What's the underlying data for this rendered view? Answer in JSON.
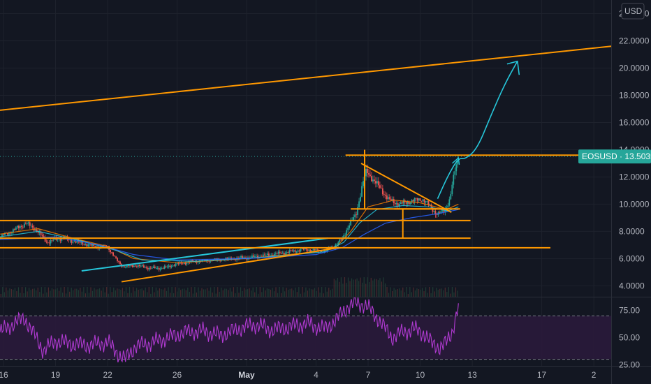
{
  "chart_data": [
    {
      "type": "candlestick",
      "symbol": "EOSUSD",
      "currency_label": "USD",
      "last_price_label": "EOSUSD · 13.5035",
      "last_price": 13.5035,
      "y_axis": {
        "ylim": [
          3.2,
          25
        ],
        "ticks": [
          4,
          6,
          8,
          10,
          12,
          14,
          16,
          18,
          20,
          22,
          24
        ],
        "tick_labels": [
          "4.0000",
          "6.0000",
          "8.0000",
          "10.0000",
          "12.0000",
          "14.0000",
          "16.0000",
          "18.0000",
          "20.0000",
          "22.0000",
          "24.0000"
        ]
      },
      "x_axis": {
        "xlim": [
          15.8,
          51
        ],
        "ticks": [
          16,
          19,
          22,
          26,
          30,
          34,
          37,
          40,
          43,
          47,
          50
        ],
        "tick_labels": [
          "16",
          "19",
          "22",
          "26",
          "May",
          "4",
          "7",
          "10",
          "13",
          "17",
          "2"
        ],
        "bold": [
          "May"
        ]
      },
      "price_path": [
        [
          15.8,
          7.6
        ],
        [
          16.6,
          8.1
        ],
        [
          17.3,
          8.6
        ],
        [
          17.9,
          8.1
        ],
        [
          18.5,
          7.2
        ],
        [
          19.3,
          7.5
        ],
        [
          20.3,
          7.2
        ],
        [
          21.2,
          6.9
        ],
        [
          22.0,
          6.9
        ],
        [
          22.5,
          5.9
        ],
        [
          22.9,
          5.4
        ],
        [
          23.6,
          5.5
        ],
        [
          24.4,
          5.3
        ],
        [
          25.2,
          5.3
        ],
        [
          26.0,
          5.6
        ],
        [
          27.0,
          5.8
        ],
        [
          28.0,
          5.9
        ],
        [
          29.2,
          6.0
        ],
        [
          30.3,
          6.1
        ],
        [
          31.5,
          6.3
        ],
        [
          32.5,
          6.5
        ],
        [
          33.4,
          6.7
        ],
        [
          34.0,
          6.6
        ],
        [
          34.5,
          6.6
        ],
        [
          35.0,
          6.9
        ],
        [
          35.5,
          7.4
        ],
        [
          35.9,
          8.5
        ],
        [
          36.3,
          9.2
        ],
        [
          36.7,
          11.6
        ],
        [
          36.9,
          12.4
        ],
        [
          37.3,
          11.8
        ],
        [
          37.8,
          11.0
        ],
        [
          38.2,
          10.3
        ],
        [
          38.8,
          10.0
        ],
        [
          39.4,
          10.2
        ],
        [
          40.1,
          10.4
        ],
        [
          40.6,
          9.8
        ],
        [
          41.0,
          9.2
        ],
        [
          41.4,
          9.6
        ],
        [
          41.7,
          10.3
        ],
        [
          42.0,
          12.5
        ],
        [
          42.2,
          13.5
        ]
      ],
      "moving_averages": [
        {
          "color": "#f57c00",
          "points": [
            [
              15.8,
              7.8
            ],
            [
              18.0,
              8.2
            ],
            [
              20.0,
              7.5
            ],
            [
              22.0,
              6.9
            ],
            [
              23.5,
              6.0
            ],
            [
              26.0,
              5.7
            ],
            [
              30.0,
              6.0
            ],
            [
              34.0,
              6.5
            ],
            [
              35.2,
              6.9
            ],
            [
              36.0,
              8.0
            ],
            [
              37.0,
              9.8
            ],
            [
              38.5,
              10.3
            ],
            [
              40.0,
              10.1
            ],
            [
              41.5,
              9.6
            ],
            [
              42.2,
              10.0
            ]
          ]
        },
        {
          "color": "#26c6da",
          "points": [
            [
              15.8,
              7.6
            ],
            [
              18.0,
              8.0
            ],
            [
              20.5,
              7.3
            ],
            [
              22.5,
              6.6
            ],
            [
              24.0,
              5.9
            ],
            [
              27.0,
              5.8
            ],
            [
              31.0,
              6.1
            ],
            [
              34.5,
              6.5
            ],
            [
              35.6,
              7.2
            ],
            [
              36.5,
              8.6
            ],
            [
              37.5,
              9.6
            ],
            [
              39.0,
              9.9
            ],
            [
              40.5,
              9.8
            ],
            [
              41.6,
              9.5
            ],
            [
              42.2,
              9.8
            ]
          ]
        },
        {
          "color": "#2962ff",
          "points": [
            [
              15.8,
              7.4
            ],
            [
              19.0,
              7.6
            ],
            [
              21.5,
              7.0
            ],
            [
              23.5,
              6.3
            ],
            [
              26.0,
              5.9
            ],
            [
              30.0,
              6.0
            ],
            [
              34.0,
              6.3
            ],
            [
              35.5,
              6.8
            ],
            [
              36.8,
              7.8
            ],
            [
              38.0,
              8.6
            ],
            [
              39.5,
              9.0
            ],
            [
              41.0,
              9.3
            ],
            [
              42.2,
              9.6
            ]
          ]
        }
      ],
      "rsi_panel": {
        "ylim": [
          24,
          87
        ],
        "ticks": [
          25,
          50,
          75
        ],
        "tick_labels": [
          "25.00",
          "50.00",
          "75.00"
        ],
        "band": [
          30,
          70
        ],
        "line_color": "#b03ad1",
        "rsi_path": [
          [
            15.8,
            55
          ],
          [
            16.5,
            62
          ],
          [
            17.2,
            68
          ],
          [
            17.8,
            52
          ],
          [
            18.3,
            38
          ],
          [
            19.0,
            47
          ],
          [
            20.0,
            44
          ],
          [
            21.0,
            43
          ],
          [
            22.0,
            46
          ],
          [
            22.6,
            35
          ],
          [
            23.0,
            30
          ],
          [
            23.6,
            42
          ],
          [
            24.5,
            45
          ],
          [
            25.5,
            50
          ],
          [
            26.5,
            55
          ],
          [
            27.5,
            56
          ],
          [
            28.5,
            52
          ],
          [
            29.5,
            58
          ],
          [
            30.5,
            62
          ],
          [
            31.5,
            57
          ],
          [
            32.5,
            60
          ],
          [
            33.5,
            63
          ],
          [
            34.5,
            58
          ],
          [
            35.2,
            67
          ],
          [
            35.8,
            78
          ],
          [
            36.3,
            82
          ],
          [
            36.8,
            80
          ],
          [
            37.3,
            73
          ],
          [
            37.8,
            62
          ],
          [
            38.4,
            50
          ],
          [
            39.0,
            55
          ],
          [
            39.6,
            58
          ],
          [
            40.2,
            54
          ],
          [
            40.7,
            44
          ],
          [
            41.1,
            41
          ],
          [
            41.5,
            45
          ],
          [
            41.8,
            53
          ],
          [
            42.2,
            80
          ]
        ]
      },
      "annotations": {
        "long_trendline": {
          "color": "#ff9800",
          "from": [
            15.8,
            16.9
          ],
          "to": [
            51.0,
            21.6
          ]
        },
        "rising_wedge": [
          {
            "color": "#ff9800",
            "from": [
              22.8,
              4.3
            ],
            "to": [
              35.3,
              6.8
            ]
          },
          {
            "color": "#26c6da",
            "from": [
              20.5,
              5.1
            ],
            "to": [
              34.7,
              7.5
            ]
          }
        ],
        "horizontal_levels": [
          {
            "color": "#ff9800",
            "y": 8.8,
            "x1": 15.8,
            "x2": 42.9
          },
          {
            "color": "#ff9800",
            "y": 7.5,
            "x1": 15.8,
            "x2": 42.9
          },
          {
            "color": "#ff9800",
            "y": 6.8,
            "x1": 15.8,
            "x2": 47.5
          },
          {
            "color": "#ff9800",
            "y": 13.6,
            "x1": 35.7,
            "x2": 51.0
          },
          {
            "color": "#ff9800",
            "y": 9.65,
            "x1": 36.0,
            "x2": 42.3
          }
        ],
        "vertical_marks": [
          {
            "color": "#ff9800",
            "x": 36.8,
            "y1": 9.65,
            "y2": 14.0
          },
          {
            "color": "#ff9800",
            "x": 39.0,
            "y1": 7.5,
            "y2": 9.65
          }
        ],
        "triangle": [
          {
            "color": "#ff9800",
            "from": [
              36.6,
              13.0
            ],
            "to": [
              41.8,
              9.4
            ]
          },
          {
            "color": "#ff9800",
            "from": [
              38.5,
              9.65
            ],
            "to": [
              41.6,
              9.65
            ]
          }
        ],
        "projection_arrow": {
          "color": "#26c6da",
          "points": [
            [
              41.0,
              10.4
            ],
            [
              41.6,
              12.1
            ],
            [
              42.2,
              13.4
            ],
            [
              42.6,
              13.3
            ],
            [
              43.3,
              14.1
            ],
            [
              44.1,
              16.6
            ],
            [
              44.9,
              18.9
            ],
            [
              45.6,
              20.5
            ]
          ],
          "head_points": [
            [
              45.0,
              20.3
            ],
            [
              45.6,
              20.5
            ],
            [
              45.7,
              19.5
            ]
          ]
        }
      }
    }
  ]
}
